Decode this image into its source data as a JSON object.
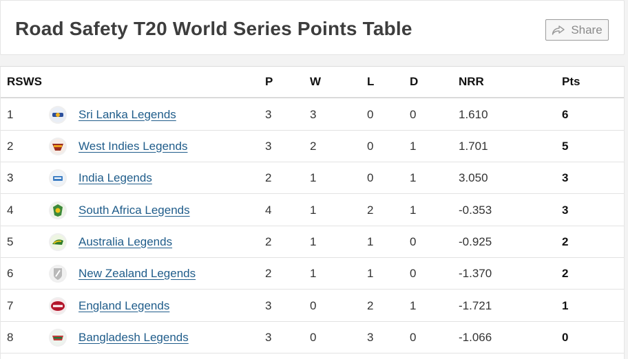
{
  "header": {
    "title": "Road Safety T20 World Series Points Table",
    "share_label": "Share"
  },
  "table": {
    "columns": {
      "rank": "RSWS",
      "p": "P",
      "w": "W",
      "l": "L",
      "d": "D",
      "nrr": "NRR",
      "pts": "Pts"
    },
    "rows": [
      {
        "rank": "1",
        "team": "Sri Lanka Legends",
        "logo": "sri-lanka-legends-logo",
        "p": "3",
        "w": "3",
        "l": "0",
        "d": "0",
        "nrr": "1.610",
        "pts": "6"
      },
      {
        "rank": "2",
        "team": "West Indies Legends",
        "logo": "west-indies-legends-logo",
        "p": "3",
        "w": "2",
        "l": "0",
        "d": "1",
        "nrr": "1.701",
        "pts": "5"
      },
      {
        "rank": "3",
        "team": "India Legends",
        "logo": "india-legends-logo",
        "p": "2",
        "w": "1",
        "l": "0",
        "d": "1",
        "nrr": "3.050",
        "pts": "3"
      },
      {
        "rank": "4",
        "team": "South Africa Legends",
        "logo": "south-africa-legends-logo",
        "p": "4",
        "w": "1",
        "l": "2",
        "d": "1",
        "nrr": "-0.353",
        "pts": "3"
      },
      {
        "rank": "5",
        "team": "Australia Legends",
        "logo": "australia-legends-logo",
        "p": "2",
        "w": "1",
        "l": "1",
        "d": "0",
        "nrr": "-0.925",
        "pts": "2"
      },
      {
        "rank": "6",
        "team": "New Zealand Legends",
        "logo": "new-zealand-legends-logo",
        "p": "2",
        "w": "1",
        "l": "1",
        "d": "0",
        "nrr": "-1.370",
        "pts": "2"
      },
      {
        "rank": "7",
        "team": "England Legends",
        "logo": "england-legends-logo",
        "p": "3",
        "w": "0",
        "l": "2",
        "d": "1",
        "nrr": "-1.721",
        "pts": "1"
      },
      {
        "rank": "8",
        "team": "Bangladesh Legends",
        "logo": "bangladesh-legends-logo",
        "p": "3",
        "w": "0",
        "l": "3",
        "d": "0",
        "nrr": "-1.066",
        "pts": "0"
      }
    ]
  },
  "colors": {
    "link": "#1f5c8a",
    "title": "#3d3d3d",
    "background": "#f3f3f3"
  }
}
